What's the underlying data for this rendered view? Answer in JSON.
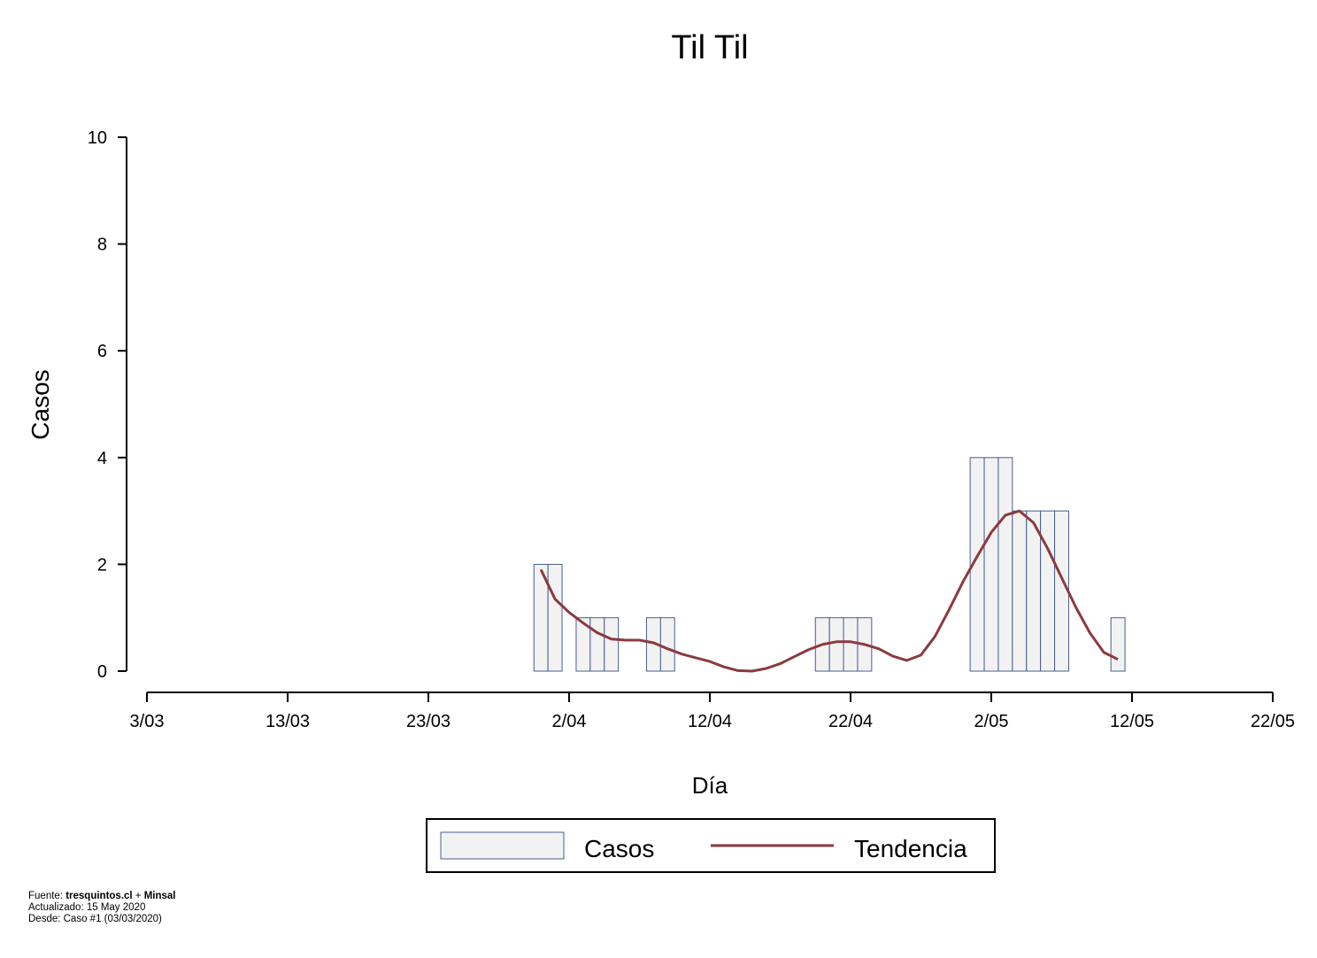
{
  "chart_data": {
    "type": "bar",
    "title": "Til Til",
    "xlabel": "Día",
    "ylabel": "Casos",
    "ylim": [
      0,
      10
    ],
    "yticks": [
      0,
      2,
      4,
      6,
      8,
      10
    ],
    "xlim_days": [
      "3/03",
      "22/05"
    ],
    "xticks": [
      "3/03",
      "13/03",
      "23/03",
      "2/04",
      "12/04",
      "22/04",
      "2/05",
      "12/05",
      "22/05"
    ],
    "legend": {
      "placement": "bottom",
      "entries": [
        "Casos",
        "Tendencia"
      ]
    },
    "series": [
      {
        "name": "Casos",
        "kind": "bar",
        "points": [
          {
            "date": "31/03",
            "value": 2
          },
          {
            "date": "1/04",
            "value": 2
          },
          {
            "date": "3/04",
            "value": 1
          },
          {
            "date": "4/04",
            "value": 1
          },
          {
            "date": "5/04",
            "value": 1
          },
          {
            "date": "8/04",
            "value": 1
          },
          {
            "date": "9/04",
            "value": 1
          },
          {
            "date": "20/04",
            "value": 1
          },
          {
            "date": "21/04",
            "value": 1
          },
          {
            "date": "22/04",
            "value": 1
          },
          {
            "date": "23/04",
            "value": 1
          },
          {
            "date": "1/05",
            "value": 4
          },
          {
            "date": "2/05",
            "value": 4
          },
          {
            "date": "3/05",
            "value": 4
          },
          {
            "date": "4/05",
            "value": 3
          },
          {
            "date": "5/05",
            "value": 3
          },
          {
            "date": "6/05",
            "value": 3
          },
          {
            "date": "7/05",
            "value": 3
          },
          {
            "date": "11/05",
            "value": 1
          }
        ]
      },
      {
        "name": "Tendencia",
        "kind": "line",
        "points": [
          {
            "date": "31/03",
            "value": 1.9
          },
          {
            "date": "1/04",
            "value": 1.35
          },
          {
            "date": "2/04",
            "value": 1.1
          },
          {
            "date": "3/04",
            "value": 0.9
          },
          {
            "date": "4/04",
            "value": 0.72
          },
          {
            "date": "5/04",
            "value": 0.6
          },
          {
            "date": "6/04",
            "value": 0.58
          },
          {
            "date": "7/04",
            "value": 0.58
          },
          {
            "date": "8/04",
            "value": 0.53
          },
          {
            "date": "9/04",
            "value": 0.42
          },
          {
            "date": "10/04",
            "value": 0.32
          },
          {
            "date": "11/04",
            "value": 0.25
          },
          {
            "date": "12/04",
            "value": 0.18
          },
          {
            "date": "13/04",
            "value": 0.08
          },
          {
            "date": "14/04",
            "value": 0.01
          },
          {
            "date": "15/04",
            "value": 0.0
          },
          {
            "date": "16/04",
            "value": 0.05
          },
          {
            "date": "17/04",
            "value": 0.14
          },
          {
            "date": "18/04",
            "value": 0.27
          },
          {
            "date": "19/04",
            "value": 0.4
          },
          {
            "date": "20/04",
            "value": 0.5
          },
          {
            "date": "21/04",
            "value": 0.55
          },
          {
            "date": "22/04",
            "value": 0.55
          },
          {
            "date": "23/04",
            "value": 0.5
          },
          {
            "date": "24/04",
            "value": 0.42
          },
          {
            "date": "25/04",
            "value": 0.28
          },
          {
            "date": "26/04",
            "value": 0.2
          },
          {
            "date": "27/04",
            "value": 0.3
          },
          {
            "date": "28/04",
            "value": 0.65
          },
          {
            "date": "29/04",
            "value": 1.15
          },
          {
            "date": "30/04",
            "value": 1.68
          },
          {
            "date": "1/05",
            "value": 2.15
          },
          {
            "date": "2/05",
            "value": 2.6
          },
          {
            "date": "3/05",
            "value": 2.92
          },
          {
            "date": "4/05",
            "value": 3.0
          },
          {
            "date": "5/05",
            "value": 2.78
          },
          {
            "date": "6/05",
            "value": 2.3
          },
          {
            "date": "7/05",
            "value": 1.75
          },
          {
            "date": "8/05",
            "value": 1.2
          },
          {
            "date": "9/05",
            "value": 0.72
          },
          {
            "date": "10/05",
            "value": 0.35
          },
          {
            "date": "11/05",
            "value": 0.22
          }
        ]
      }
    ]
  },
  "colors": {
    "bar_fill": "#f2f2f2",
    "bar_stroke": "#4a5d8e",
    "trend": "#8b3a3e"
  },
  "footer": {
    "fuente_label": "Fuente: ",
    "fuente_site": "tresquintos.cl",
    "fuente_plus": " + ",
    "fuente_org": "Minsal",
    "actualizado": "Actualizado: 15 May 2020",
    "desde": "Desde: Caso #1  (03/03/2020)"
  }
}
